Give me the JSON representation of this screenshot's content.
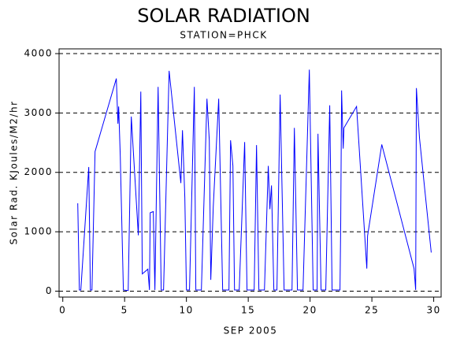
{
  "chart_data": {
    "type": "line",
    "title": "SOLAR RADIATION",
    "subtitle": "STATION=PHCK",
    "xlabel": "SEP 2005",
    "ylabel": "Solar Rad. KJoules/M2/hr",
    "xlim": [
      -0.3,
      30.6
    ],
    "ylim": [
      -100,
      4080
    ],
    "xticks": [
      0,
      5,
      10,
      15,
      20,
      25,
      30
    ],
    "yticks": [
      0,
      1000,
      2000,
      3000,
      4000
    ],
    "grid": true,
    "series": [
      {
        "color": "#0000ff",
        "x": [
          1.21,
          1.34,
          1.46,
          2.1,
          2.23,
          2.36,
          2.61,
          4.33,
          4.46,
          4.52,
          4.65,
          4.9,
          5.29,
          5.54,
          6.11,
          6.31,
          6.43,
          6.88,
          7.01,
          7.07,
          7.32,
          7.45,
          7.71,
          7.96,
          8.15,
          8.6,
          9.55,
          9.68,
          9.87,
          10.0,
          10.25,
          10.64,
          10.76,
          11.21,
          11.66,
          11.85,
          11.97,
          12.17,
          12.61,
          12.93,
          13.44,
          13.57,
          13.76,
          13.89,
          14.27,
          14.71,
          14.9,
          15.48,
          15.67,
          15.86,
          16.31,
          16.62,
          16.75,
          16.88,
          17.07,
          17.32,
          17.58,
          17.9,
          18.54,
          18.73,
          18.98,
          19.43,
          19.94,
          20.25,
          20.57,
          20.64,
          20.89,
          21.27,
          21.59,
          21.72,
          21.78,
          22.42,
          22.48,
          22.55,
          22.68,
          22.74,
          23.76,
          24.59,
          24.65,
          25.8,
          28.41,
          28.54,
          28.6,
          28.85,
          29.8
        ],
        "values": [
          1480,
          20,
          20,
          2090,
          20,
          20,
          2350,
          3580,
          2820,
          3110,
          2270,
          20,
          10,
          2940,
          940,
          3360,
          290,
          370,
          20,
          1320,
          1340,
          20,
          3440,
          20,
          20,
          3710,
          1820,
          2710,
          1580,
          20,
          20,
          3440,
          20,
          20,
          3240,
          2540,
          190,
          1420,
          3240,
          20,
          20,
          2540,
          2110,
          20,
          20,
          2510,
          20,
          20,
          2460,
          20,
          20,
          2110,
          1380,
          1780,
          20,
          20,
          3310,
          20,
          20,
          2750,
          20,
          20,
          3730,
          20,
          20,
          2650,
          20,
          20,
          3130,
          1050,
          20,
          20,
          1170,
          3380,
          2400,
          2750,
          3110,
          380,
          930,
          2470,
          380,
          20,
          3420,
          2580,
          650
        ]
      }
    ]
  }
}
